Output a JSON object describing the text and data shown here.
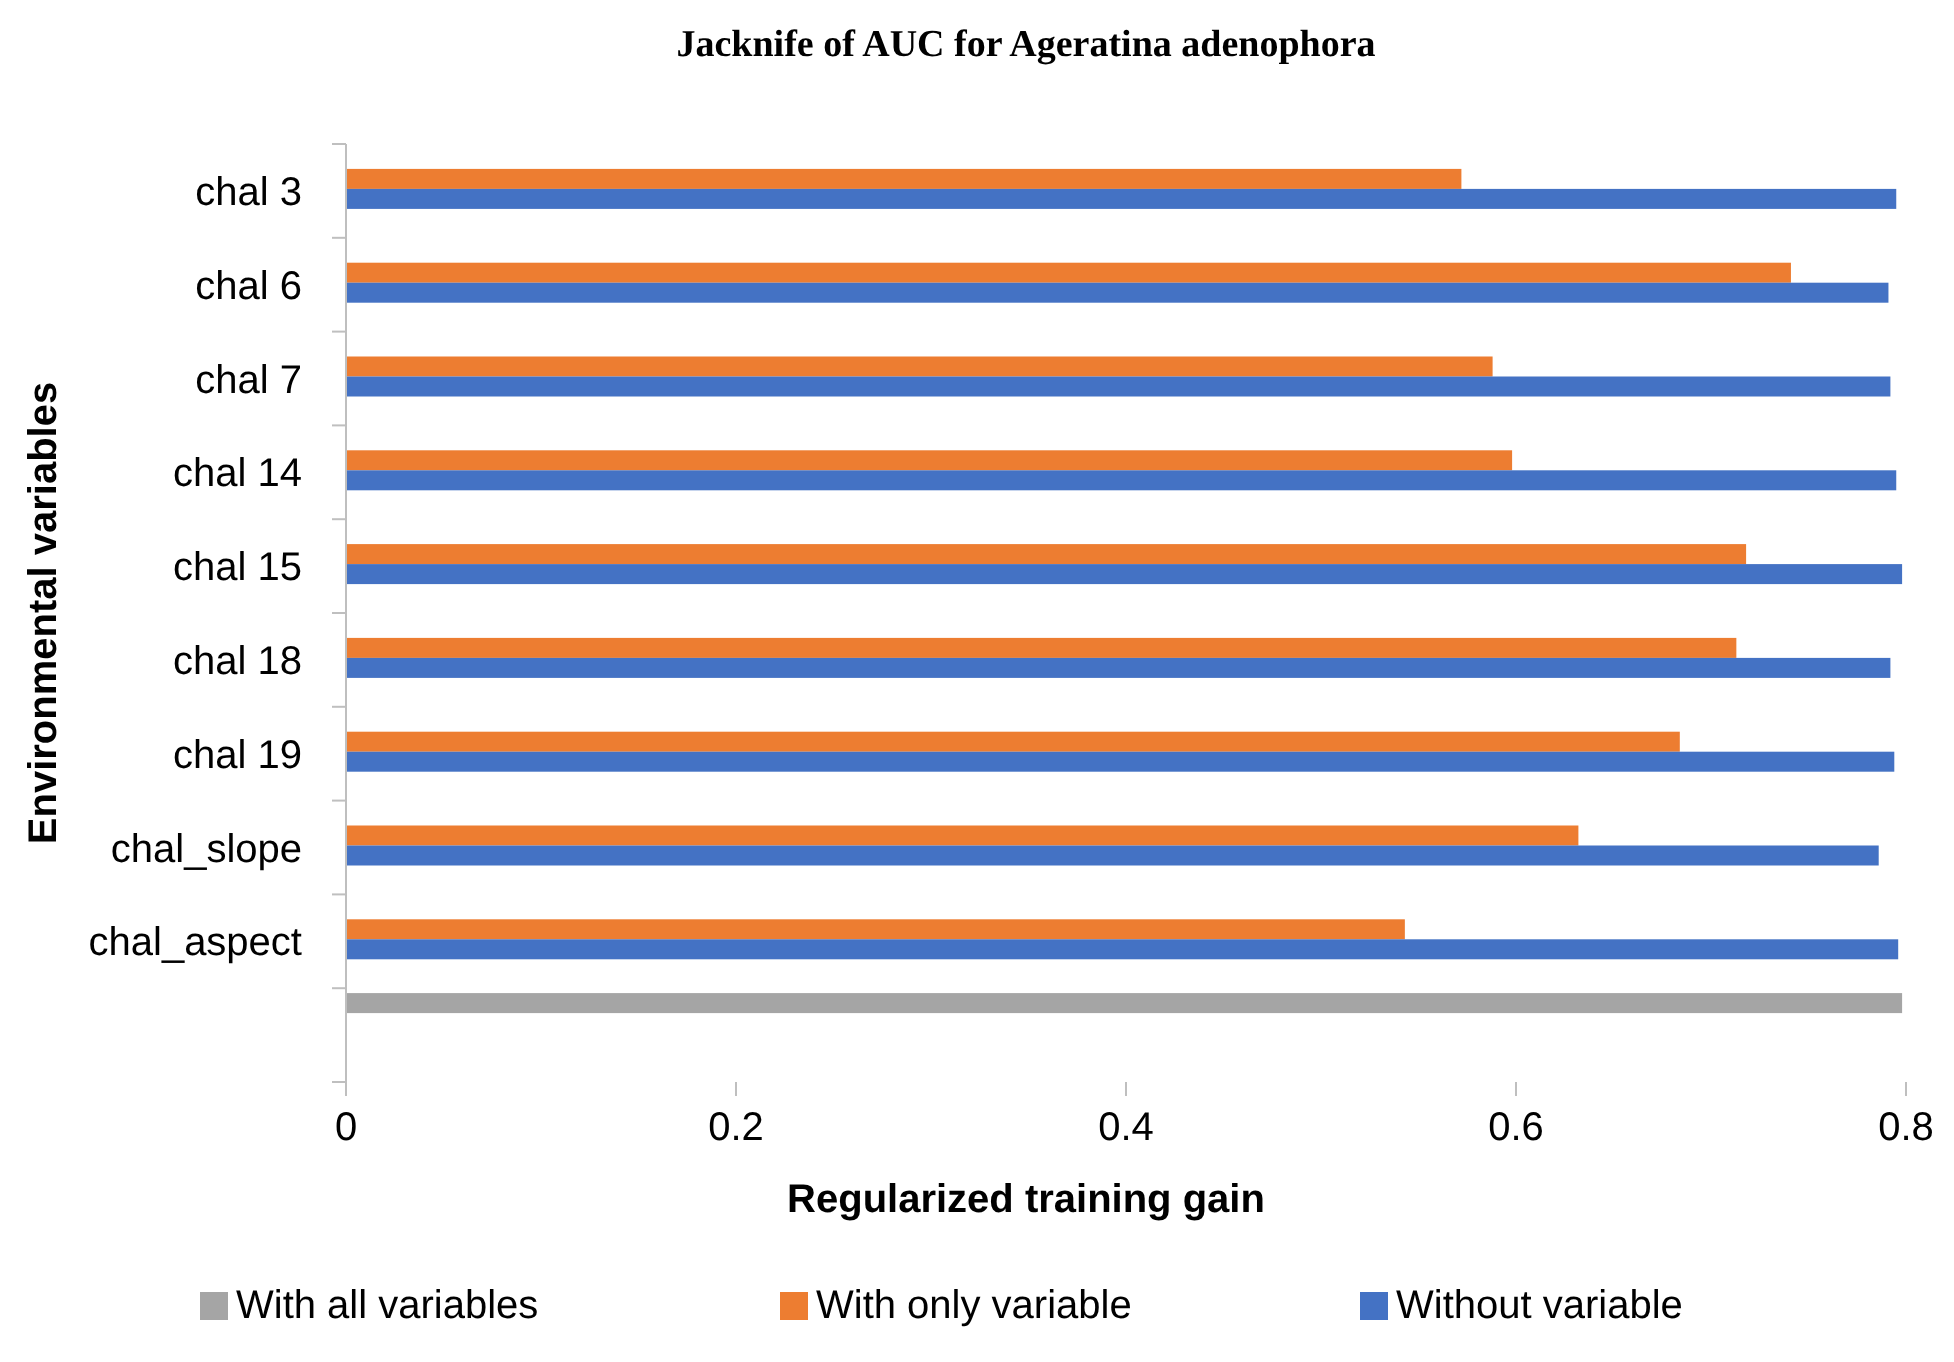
{
  "chart_data": {
    "type": "bar",
    "orientation": "horizontal",
    "title": "Jacknife of AUC for Ageratina adenophora",
    "xlabel": "Regularized training gain",
    "ylabel": "Environmental variables",
    "categories": [
      "chal 3",
      "chal 6",
      "chal 7",
      "chal 14",
      "chal 15",
      "chal 18",
      "chal 19",
      "chal_slope",
      "chal_aspect",
      null
    ],
    "series": [
      {
        "name": "With all variables",
        "color": "#a5a5a5",
        "values": [
          null,
          null,
          null,
          null,
          null,
          null,
          null,
          null,
          null,
          0.798
        ]
      },
      {
        "name": "With only variable",
        "color": "#ed7d31",
        "values": [
          0.572,
          0.741,
          0.588,
          0.598,
          0.718,
          0.713,
          0.684,
          0.632,
          0.543,
          null
        ]
      },
      {
        "name": "Without variable",
        "color": "#4472c4",
        "values": [
          0.795,
          0.791,
          0.792,
          0.795,
          0.798,
          0.792,
          0.794,
          0.786,
          0.796,
          null
        ]
      }
    ],
    "xlim": [
      0,
      0.8
    ],
    "xticks": [
      0,
      0.2,
      0.4,
      0.6,
      0.8
    ],
    "grid": false,
    "legend": "bottom"
  }
}
